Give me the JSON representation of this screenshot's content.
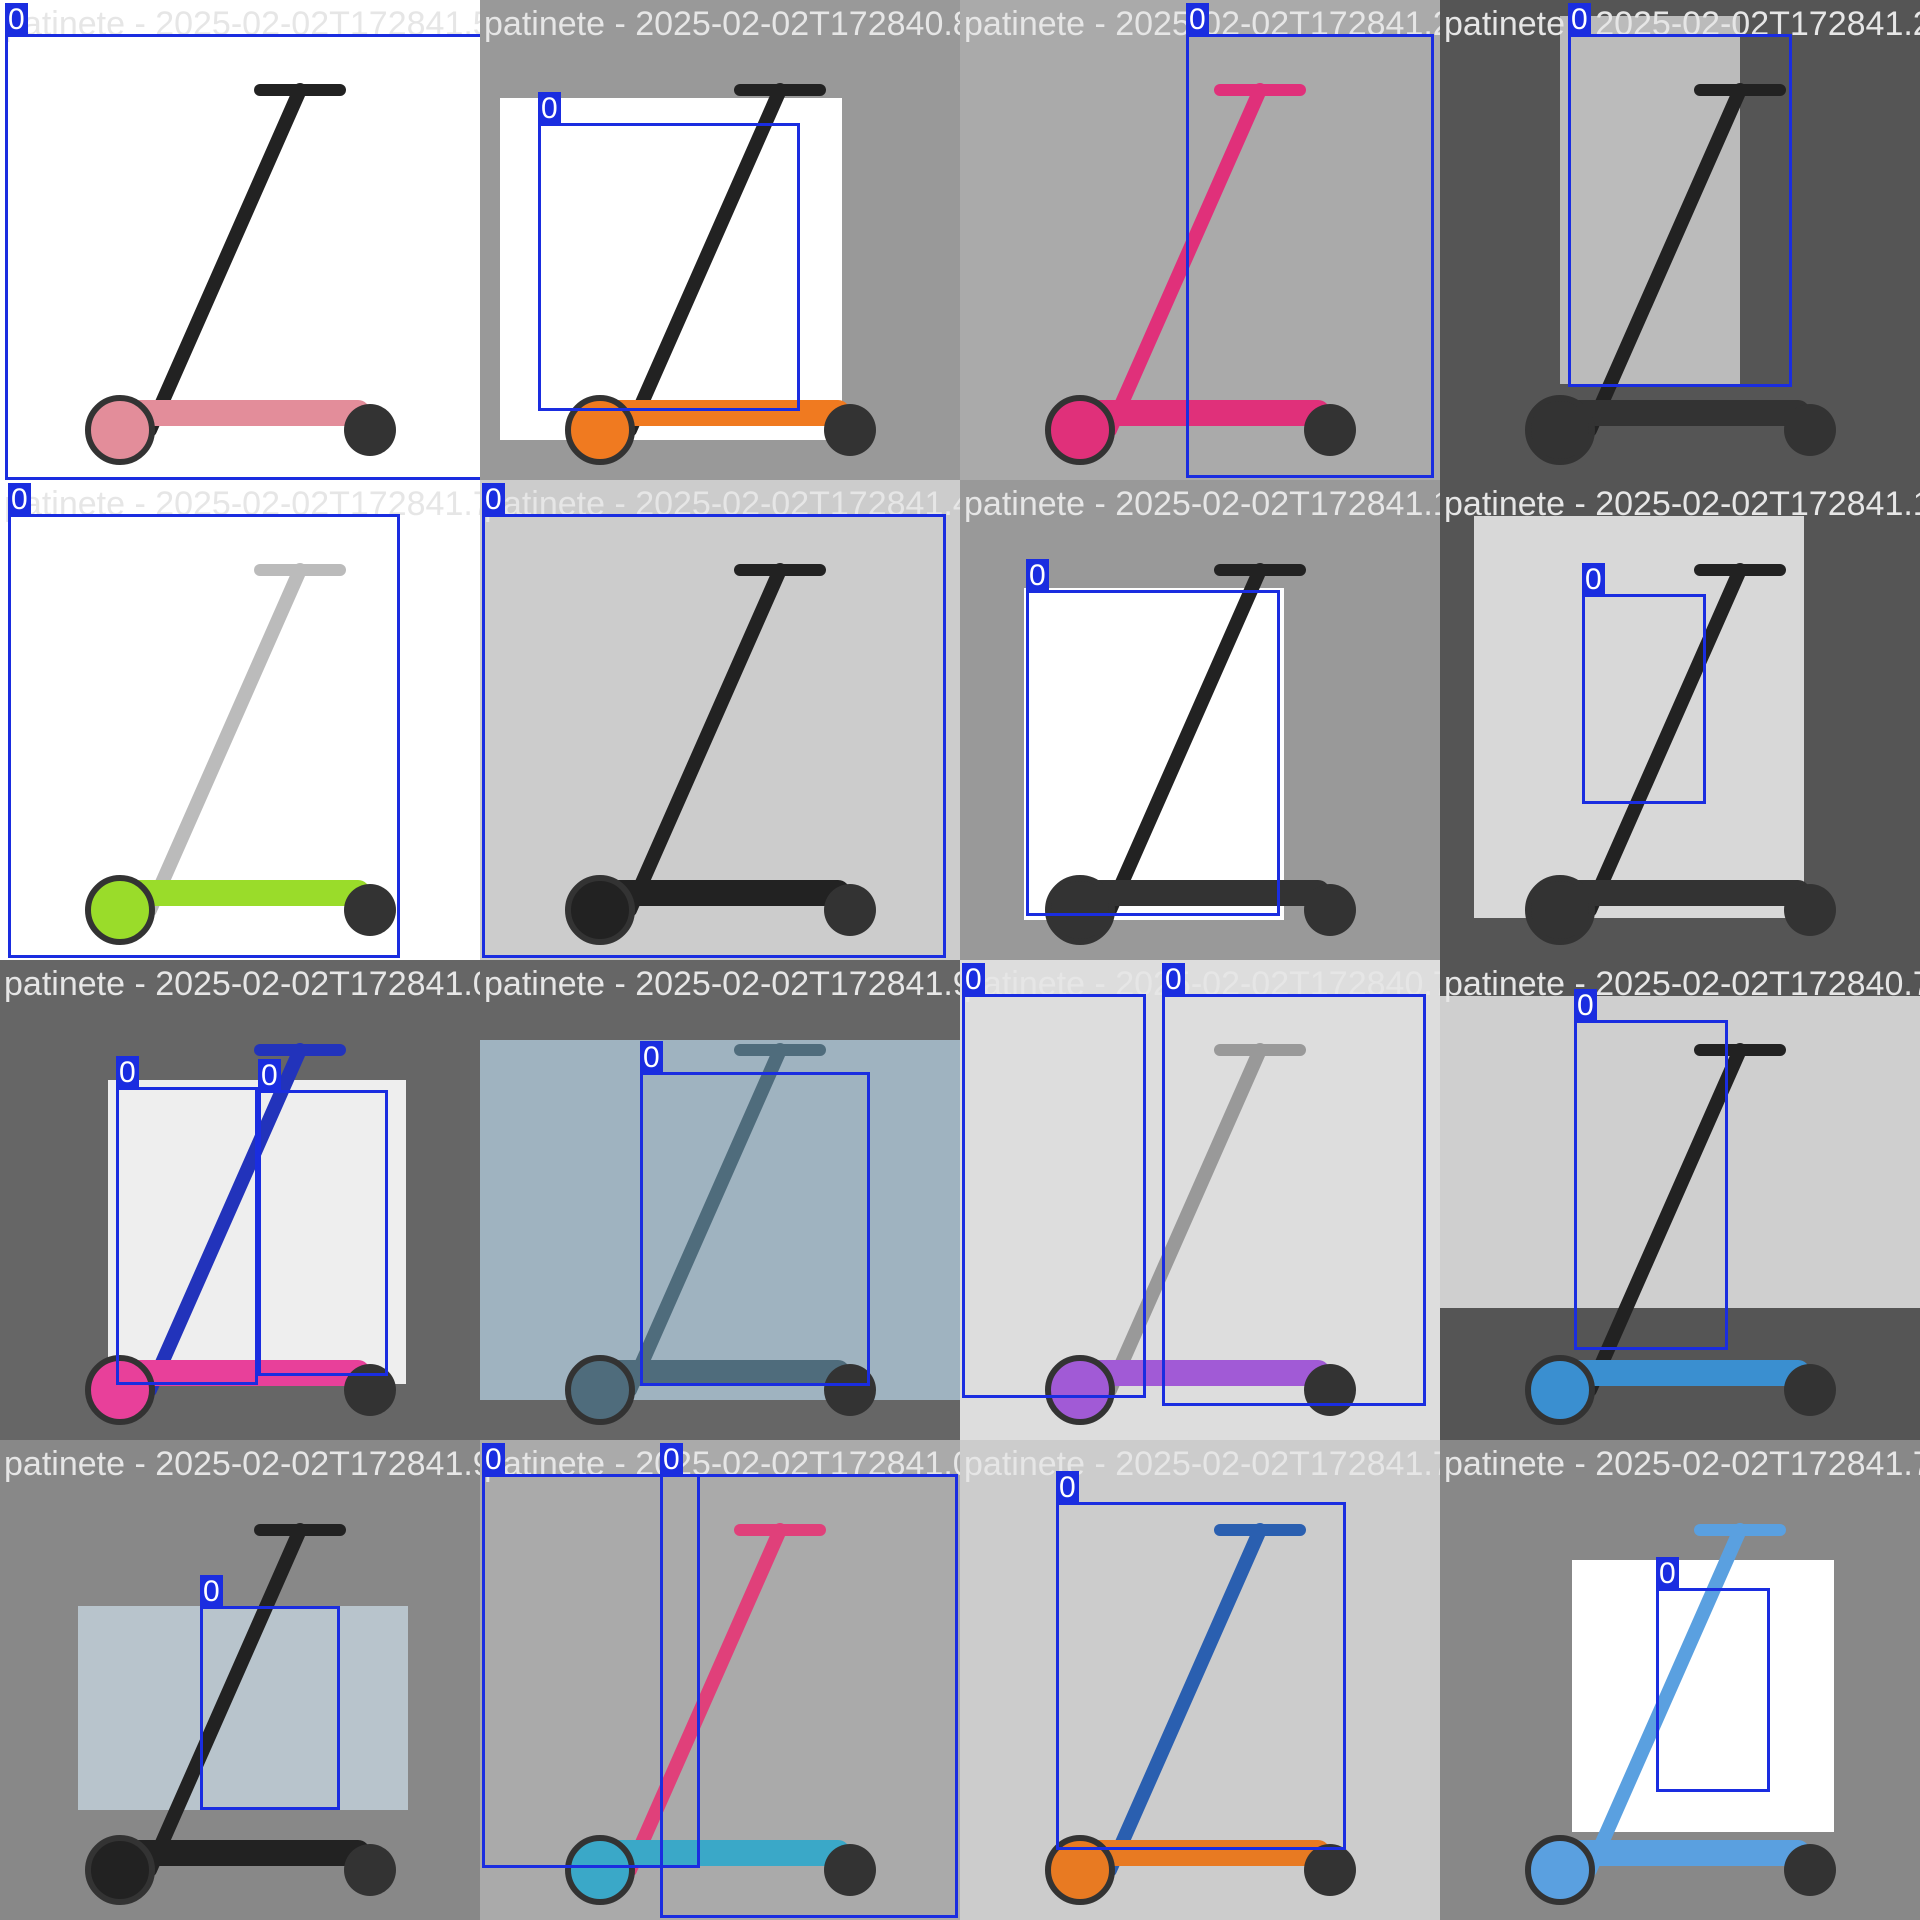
{
  "cells": [
    {
      "name": "cell-1",
      "filename": "patinete - 2025-02-02T172841.535.jpeg",
      "bg": "#ffffff",
      "photo": null,
      "scooter": "kick-pink",
      "boxes": [
        {
          "label": "0"
        }
      ]
    },
    {
      "name": "cell-2",
      "filename": "patinete - 2025-02-02T172840.806.jpeg",
      "bg": "#999999",
      "photo": "#ffffff",
      "scooter": "gas-orange",
      "boxes": [
        {
          "label": "0"
        }
      ]
    },
    {
      "name": "cell-3",
      "filename": "patinete - 2025-02-02T172841.269.jpeg",
      "bg": "#aaaaaa",
      "photo": null,
      "scooter": "kick-magenta",
      "boxes": [
        {
          "label": "0"
        }
      ]
    },
    {
      "name": "cell-4",
      "filename": "patinete - 2025-02-02T172841.269.jpeg",
      "bg": "#555555",
      "photo": "#bbbbbb",
      "scooter": "electric-black",
      "boxes": [
        {
          "label": "0"
        }
      ]
    },
    {
      "name": "cell-5",
      "filename": "patinete - 2025-02-02T172841.733.jpeg",
      "bg": "#ffffff",
      "photo": null,
      "scooter": "kick-green",
      "boxes": [
        {
          "label": "0"
        }
      ]
    },
    {
      "name": "cell-6",
      "filename": "patinete - 2025-02-02T172841.457.jpeg",
      "bg": "#cccccc",
      "photo": null,
      "scooter": "folding-black",
      "boxes": [
        {
          "label": "0"
        }
      ]
    },
    {
      "name": "cell-7",
      "filename": "patinete - 2025-02-02T172841.194.jpeg",
      "bg": "#999999",
      "photo": "#ffffff",
      "scooter": "electric-black",
      "boxes": [
        {
          "label": "0"
        }
      ]
    },
    {
      "name": "cell-8",
      "filename": "patinete - 2025-02-02T172841.194.jpeg",
      "bg": "#555555",
      "photo": "#d8d8d8",
      "scooter": "electric-doc",
      "boxes": [
        {
          "label": "0"
        }
      ]
    },
    {
      "name": "cell-9",
      "filename": "patinete - 2025-02-02T172841.027.jpeg",
      "bg": "#666666",
      "photo": "#eeeeee",
      "scooter": "kids-pink-blue",
      "boxes": [
        {
          "label": "0"
        },
        {
          "label": "0"
        }
      ]
    },
    {
      "name": "cell-10",
      "filename": "patinete - 2025-02-02T172841.918.jpeg",
      "bg": "#666666",
      "photo": "#9fb3c0",
      "scooter": "electric-beach",
      "boxes": [
        {
          "label": "0"
        }
      ]
    },
    {
      "name": "cell-11",
      "filename": "patinete - 2025-02-02T172840.709.jpeg",
      "bg": "#dddddd",
      "photo": null,
      "scooter": "kick-purple",
      "boxes": [
        {
          "label": "0"
        },
        {
          "label": "0"
        }
      ]
    },
    {
      "name": "cell-12",
      "filename": "patinete - 2025-02-02T172840.709.jpeg",
      "bg": "#555555",
      "photo": "#cfcfcf",
      "scooter": "kick-blue",
      "boxes": [
        {
          "label": "0"
        }
      ]
    },
    {
      "name": "cell-13",
      "filename": "patinete - 2025-02-02T172841.962.jpeg",
      "bg": "#888888",
      "photo": "#b8c4cc",
      "scooter": "electric-rio",
      "boxes": [
        {
          "label": "0"
        }
      ]
    },
    {
      "name": "cell-14",
      "filename": "patinete - 2025-02-02T172841.004.jpeg",
      "bg": "#aaaaaa",
      "photo": null,
      "scooter": "kick-blur",
      "boxes": [
        {
          "label": "0"
        },
        {
          "label": "0"
        }
      ]
    },
    {
      "name": "cell-15",
      "filename": "patinete - 2025-02-02T172841.752.jpeg",
      "bg": "#cccccc",
      "photo": null,
      "scooter": "kids-orange",
      "boxes": [
        {
          "label": "0"
        }
      ]
    },
    {
      "name": "cell-16",
      "filename": "patinete - 2025-02-02T172841.752.jpeg",
      "bg": "#888888",
      "photo": "#ffffff",
      "scooter": "kick-light",
      "boxes": [
        {
          "label": "0"
        }
      ]
    }
  ]
}
